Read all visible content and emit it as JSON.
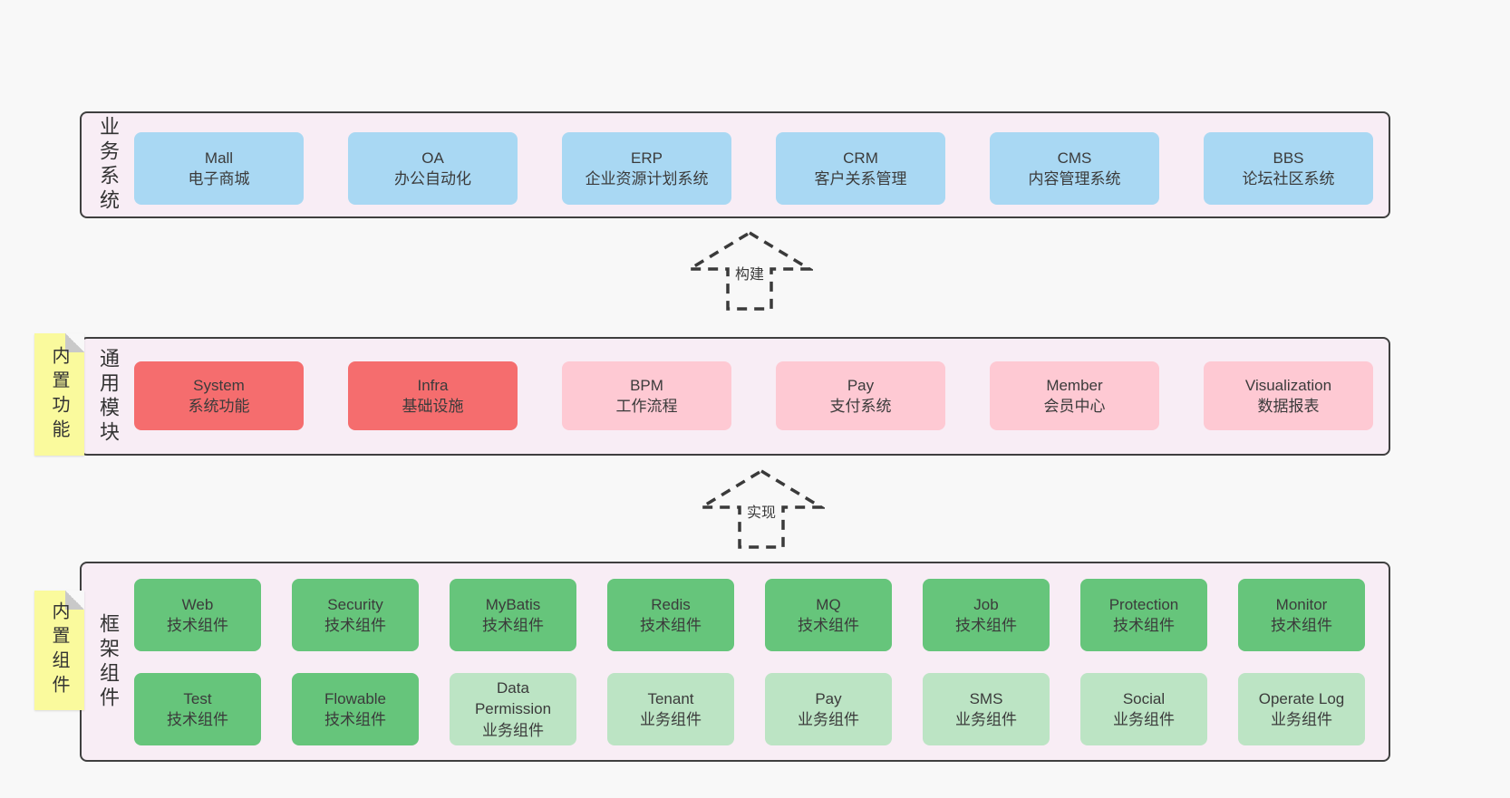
{
  "colors": {
    "page_bg": "#f8f8f8",
    "panel_bg": "#f8edf5",
    "panel_border": "#3f3f3f",
    "box_blue": "#a9d8f3",
    "box_red": "#f56d6e",
    "box_pink": "#fec9d3",
    "box_green": "#66c57b",
    "box_light_green": "#bce4c4",
    "note_yellow": "#fafa9d",
    "note_fold_gray": "#c9c9c9",
    "text": "#3b3b3b"
  },
  "arrows": {
    "build": {
      "label": "构建"
    },
    "implement": {
      "label": "实现"
    }
  },
  "sections": {
    "business": {
      "label": "业务系统",
      "boxes": [
        {
          "name": "Mall",
          "desc": "电子商城",
          "variant": "blue"
        },
        {
          "name": "OA",
          "desc": "办公自动化",
          "variant": "blue"
        },
        {
          "name": "ERP",
          "desc": "企业资源计划系统",
          "variant": "blue"
        },
        {
          "name": "CRM",
          "desc": "客户关系管理",
          "variant": "blue"
        },
        {
          "name": "CMS",
          "desc": "内容管理系统",
          "variant": "blue"
        },
        {
          "name": "BBS",
          "desc": "论坛社区系统",
          "variant": "blue"
        }
      ]
    },
    "modules": {
      "label": "通用模块",
      "note": "内置功能",
      "boxes": [
        {
          "name": "System",
          "desc": "系统功能",
          "variant": "red"
        },
        {
          "name": "Infra",
          "desc": "基础设施",
          "variant": "red"
        },
        {
          "name": "BPM",
          "desc": "工作流程",
          "variant": "pink"
        },
        {
          "name": "Pay",
          "desc": "支付系统",
          "variant": "pink"
        },
        {
          "name": "Member",
          "desc": "会员中心",
          "variant": "pink"
        },
        {
          "name": "Visualization",
          "desc": "数据报表",
          "variant": "pink"
        }
      ]
    },
    "framework": {
      "label": "框架组件",
      "note": "内置组件",
      "row1": [
        {
          "name": "Web",
          "desc": "技术组件",
          "variant": "green"
        },
        {
          "name": "Security",
          "desc": "技术组件",
          "variant": "green"
        },
        {
          "name": "MyBatis",
          "desc": "技术组件",
          "variant": "green"
        },
        {
          "name": "Redis",
          "desc": "技术组件",
          "variant": "green"
        },
        {
          "name": "MQ",
          "desc": "技术组件",
          "variant": "green"
        },
        {
          "name": "Job",
          "desc": "技术组件",
          "variant": "green"
        },
        {
          "name": "Protection",
          "desc": "技术组件",
          "variant": "green"
        },
        {
          "name": "Monitor",
          "desc": "技术组件",
          "variant": "green"
        }
      ],
      "row2": [
        {
          "name": "Test",
          "desc": "技术组件",
          "variant": "green"
        },
        {
          "name": "Flowable",
          "desc": "技术组件",
          "variant": "green"
        },
        {
          "name": "Data Permission",
          "desc": "业务组件",
          "variant": "lightgreen"
        },
        {
          "name": "Tenant",
          "desc": "业务组件",
          "variant": "lightgreen"
        },
        {
          "name": "Pay",
          "desc": "业务组件",
          "variant": "lightgreen"
        },
        {
          "name": "SMS",
          "desc": "业务组件",
          "variant": "lightgreen"
        },
        {
          "name": "Social",
          "desc": "业务组件",
          "variant": "lightgreen"
        },
        {
          "name": "Operate Log",
          "desc": "业务组件",
          "variant": "lightgreen"
        }
      ]
    }
  }
}
